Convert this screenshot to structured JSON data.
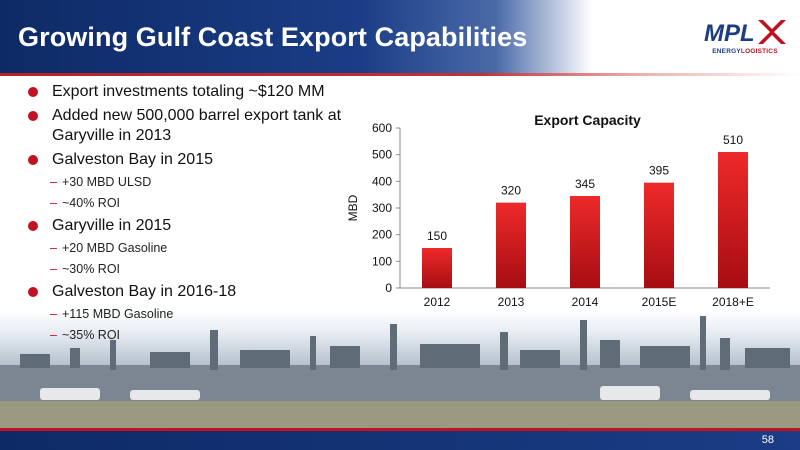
{
  "header": {
    "title": "Growing Gulf Coast Export Capabilities",
    "logo_text": "MPLX",
    "logo_sub_left": "ENERGY",
    "logo_sub_right": "LOGISTICS"
  },
  "bullets": [
    {
      "text": "Export investments totaling ~$120 MM",
      "sub": []
    },
    {
      "text": "Added new 500,000 barrel export tank at Garyville in 2013",
      "sub": []
    },
    {
      "text": "Galveston Bay in 2015",
      "sub": [
        "+30 MBD ULSD",
        "~40% ROI"
      ]
    },
    {
      "text": "Garyville in 2015",
      "sub": [
        "+20 MBD Gasoline",
        "~30% ROI"
      ]
    },
    {
      "text": "Galveston Bay in 2016-18",
      "sub": [
        "+115 MBD Gasoline",
        "~35% ROI"
      ]
    }
  ],
  "colors": {
    "navy": "#1a3d86",
    "accent_red": "#c1121f",
    "bar_top": "#ee2a2a",
    "bar_bottom": "#a60d12"
  },
  "chart_data": {
    "type": "bar",
    "title": "Export Capacity",
    "ylabel": "MBD",
    "xlabel": "",
    "categories": [
      "2012",
      "2013",
      "2014",
      "2015E",
      "2018+E"
    ],
    "values": [
      150,
      320,
      345,
      395,
      510
    ],
    "ylim": [
      0,
      600
    ],
    "yticks": [
      0,
      100,
      200,
      300,
      400,
      500,
      600
    ],
    "grid": false,
    "data_labels": true
  },
  "footer": {
    "page_number": "58"
  }
}
